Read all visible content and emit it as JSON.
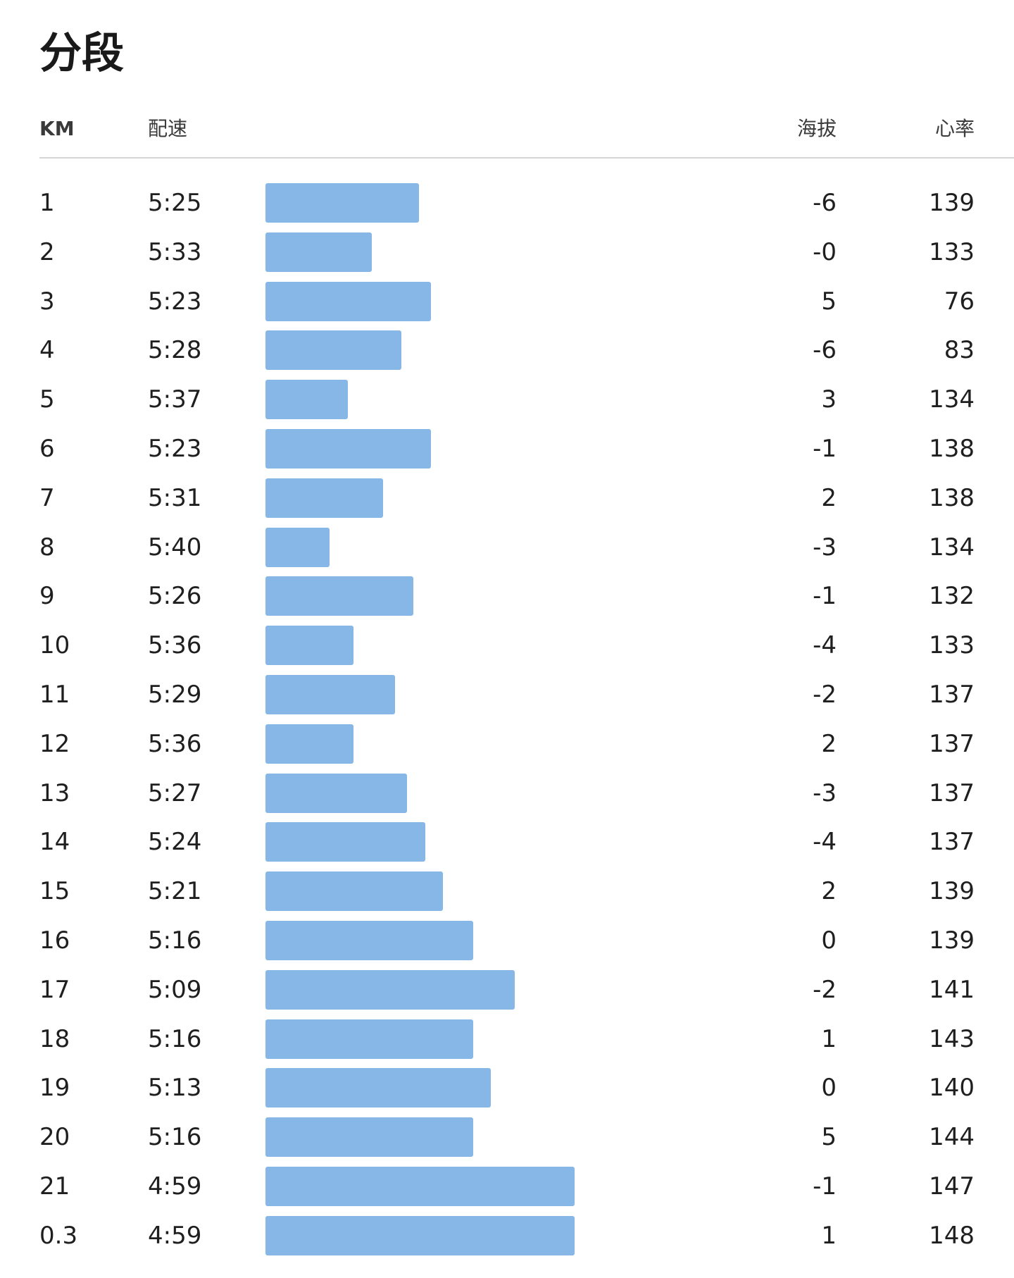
{
  "title": "分段",
  "header": {
    "km": "KM",
    "pace": "配速",
    "elevation": "海拔",
    "heart_rate": "心率"
  },
  "bar_color": "#86b7e7",
  "splits": [
    {
      "km": "1",
      "pace": "5:25",
      "pace_seconds": 325,
      "elevation": "-6",
      "hr": "139"
    },
    {
      "km": "2",
      "pace": "5:33",
      "pace_seconds": 333,
      "elevation": "-0",
      "hr": "133"
    },
    {
      "km": "3",
      "pace": "5:23",
      "pace_seconds": 323,
      "elevation": "5",
      "hr": "76"
    },
    {
      "km": "4",
      "pace": "5:28",
      "pace_seconds": 328,
      "elevation": "-6",
      "hr": "83"
    },
    {
      "km": "5",
      "pace": "5:37",
      "pace_seconds": 337,
      "elevation": "3",
      "hr": "134"
    },
    {
      "km": "6",
      "pace": "5:23",
      "pace_seconds": 323,
      "elevation": "-1",
      "hr": "138"
    },
    {
      "km": "7",
      "pace": "5:31",
      "pace_seconds": 331,
      "elevation": "2",
      "hr": "138"
    },
    {
      "km": "8",
      "pace": "5:40",
      "pace_seconds": 340,
      "elevation": "-3",
      "hr": "134"
    },
    {
      "km": "9",
      "pace": "5:26",
      "pace_seconds": 326,
      "elevation": "-1",
      "hr": "132"
    },
    {
      "km": "10",
      "pace": "5:36",
      "pace_seconds": 336,
      "elevation": "-4",
      "hr": "133"
    },
    {
      "km": "11",
      "pace": "5:29",
      "pace_seconds": 329,
      "elevation": "-2",
      "hr": "137"
    },
    {
      "km": "12",
      "pace": "5:36",
      "pace_seconds": 336,
      "elevation": "2",
      "hr": "137"
    },
    {
      "km": "13",
      "pace": "5:27",
      "pace_seconds": 327,
      "elevation": "-3",
      "hr": "137"
    },
    {
      "km": "14",
      "pace": "5:24",
      "pace_seconds": 324,
      "elevation": "-4",
      "hr": "137"
    },
    {
      "km": "15",
      "pace": "5:21",
      "pace_seconds": 321,
      "elevation": "2",
      "hr": "139"
    },
    {
      "km": "16",
      "pace": "5:16",
      "pace_seconds": 316,
      "elevation": "0",
      "hr": "139"
    },
    {
      "km": "17",
      "pace": "5:09",
      "pace_seconds": 309,
      "elevation": "-2",
      "hr": "141"
    },
    {
      "km": "18",
      "pace": "5:16",
      "pace_seconds": 316,
      "elevation": "1",
      "hr": "143"
    },
    {
      "km": "19",
      "pace": "5:13",
      "pace_seconds": 313,
      "elevation": "0",
      "hr": "140"
    },
    {
      "km": "20",
      "pace": "5:16",
      "pace_seconds": 316,
      "elevation": "5",
      "hr": "144"
    },
    {
      "km": "21",
      "pace": "4:59",
      "pace_seconds": 299,
      "elevation": "-1",
      "hr": "147"
    },
    {
      "km": "0.3",
      "pace": "4:59",
      "pace_seconds": 299,
      "elevation": "1",
      "hr": "148"
    }
  ]
}
